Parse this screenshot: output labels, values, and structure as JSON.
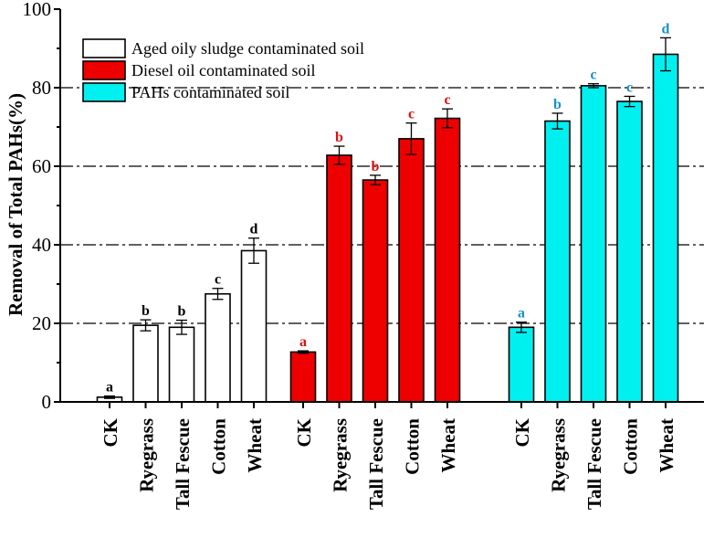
{
  "chart_data": {
    "type": "bar",
    "ylabel": "Removal of Total PAHs(%)",
    "xlabel": "",
    "ylim": [
      0,
      100
    ],
    "yticks": [
      0,
      20,
      40,
      60,
      80,
      100
    ],
    "grid": "horizontal dash-dot at 20, 40, 60, 80",
    "legend_position": "top-left",
    "series": [
      {
        "name": "Aged oily sludge contaminated soil",
        "color": "#ffffff",
        "label_color": "#000000",
        "categories": [
          "CK",
          "Ryegrass",
          "Tall Fescue",
          "Cotton",
          "Wheat"
        ],
        "values": [
          1.2,
          19.5,
          19.0,
          27.5,
          38.5
        ],
        "errors": [
          0.3,
          1.4,
          1.8,
          1.4,
          3.2
        ],
        "significance": [
          "a",
          "b",
          "b",
          "c",
          "d"
        ]
      },
      {
        "name": "Diesel oil contaminated soil",
        "color": "#ee0000",
        "label_color": "#dd1111",
        "categories": [
          "CK",
          "Ryegrass",
          "Tall Fescue",
          "Cotton",
          "Wheat"
        ],
        "values": [
          12.7,
          62.8,
          56.5,
          67.0,
          72.2
        ],
        "errors": [
          0.3,
          2.3,
          1.2,
          4.0,
          2.4
        ],
        "significance": [
          "a",
          "b",
          "b",
          "c",
          "c"
        ]
      },
      {
        "name": "PAHs contaminated soil",
        "color": "#00f0f0",
        "label_color": "#1a8fc8",
        "categories": [
          "CK",
          "Ryegrass",
          "Tall Fescue",
          "Cotton",
          "Wheat"
        ],
        "values": [
          19.0,
          71.5,
          80.5,
          76.5,
          88.5
        ],
        "errors": [
          1.3,
          2.0,
          0.5,
          1.3,
          4.2
        ],
        "significance": [
          "a",
          "b",
          "c",
          "c",
          "d"
        ]
      }
    ]
  }
}
